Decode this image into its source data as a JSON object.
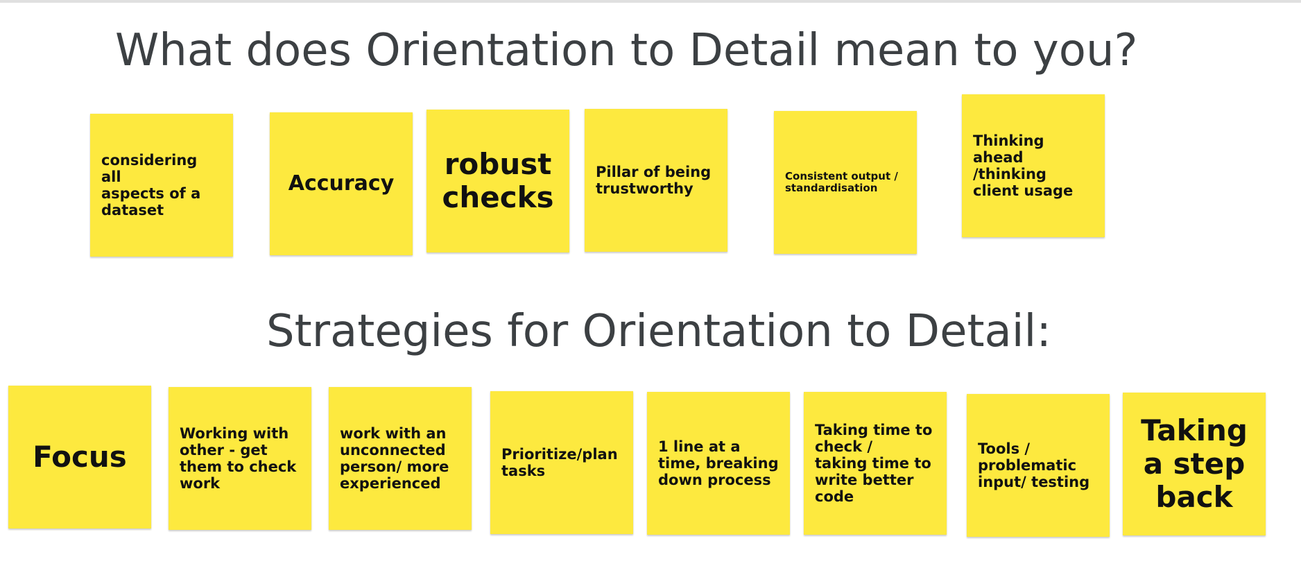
{
  "section1": {
    "title": "What does Orientation to Detail mean to you?",
    "notes": [
      "considering all\naspects of a\ndataset",
      "Accuracy",
      "robust\nchecks",
      "Pillar of being\ntrustworthy",
      "Consistent output /\nstandardisation",
      "Thinking\nahead\n/thinking\nclient usage"
    ]
  },
  "section2": {
    "title": "Strategies for Orientation to Detail:",
    "notes": [
      "Focus",
      "Working with\nother - get\nthem to check\nwork",
      "work with an\nunconnected\nperson/ more\nexperienced",
      "Prioritize/plan\ntasks",
      "1 line at a\ntime, breaking\ndown process",
      "Taking time to\ncheck /\ntaking time to\nwrite better\ncode",
      "Tools /\nproblematic\ninput/ testing",
      "Taking\na step\nback"
    ]
  },
  "colors": {
    "sticky": "#fde93f",
    "heading": "#3c4043",
    "background": "#ffffff"
  }
}
